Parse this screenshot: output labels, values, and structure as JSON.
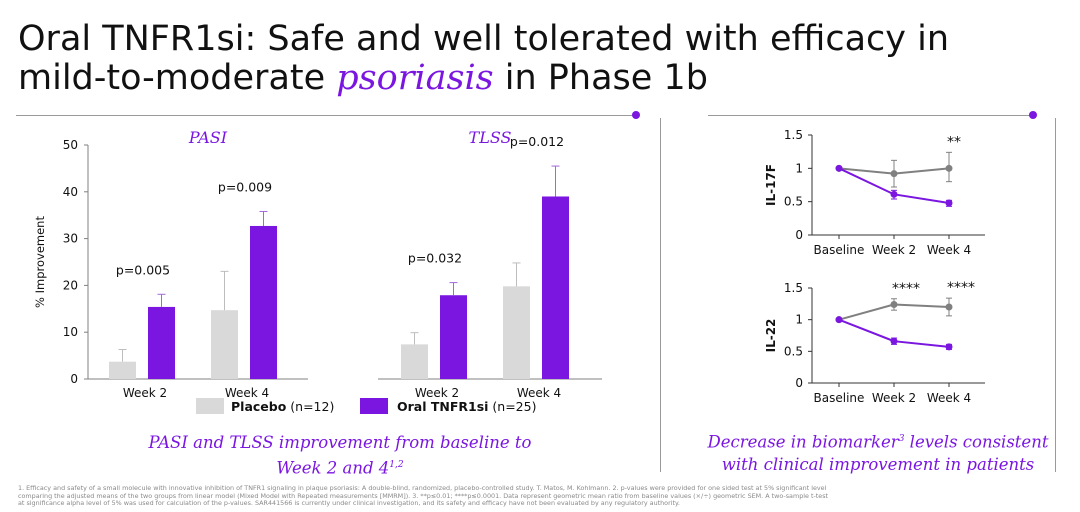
{
  "slide": {
    "title_line1": "Oral TNFR1si: Safe and well tolerated with efficacy in",
    "title_line2_pre": "mild-to-moderate ",
    "title_line2_accent": "psoriasis",
    "title_line2_post": " in Phase 1b",
    "accent_color": "#7a16e0",
    "caption_left_line1": "PASI and TLSS improvement from baseline to",
    "caption_left_line2": "Week 2 and 4",
    "caption_left_sup": "1,2",
    "caption_right_line1": "Decrease in biomarker",
    "caption_right_sup": "3",
    "caption_right_line1_post": " levels consistent",
    "caption_right_line2": "with clinical improvement in patients",
    "footnote_lines": [
      "1. Efficacy and safety of a small molecule with innovative inhibition of TNFR1 signaling in plaque psoriasis: A double-blind, randomized, placebo-controlled study. T. Matos, M. Kohlmann.     2. p-values were provided for one sided test at 5% significant level",
      "comparing the adjusted means of the two groups from linear model (Mixed Model with Repeated measurements [MMRM]).     3. **p≤0.01; ****p≤0.0001. Data represent geometric mean ratio from baseline values (×/÷) geometric SEM. A two-sample t-test",
      "at significance alpha level of 5% was used for calculation of the p-values.     SAR441566 is currently under clinical investigation, and its safety and efficacy have not been evaluated by any regulatory authority."
    ]
  },
  "chart_data": [
    {
      "type": "bar",
      "title": "PASI",
      "ylabel": "% Improvement",
      "ylim": [
        0,
        50
      ],
      "yticks": [
        0,
        10,
        20,
        30,
        40,
        50
      ],
      "categories": [
        "Week 2",
        "Week 4"
      ],
      "series": [
        {
          "name": "Placebo",
          "color": "#d9d9d9",
          "values": [
            3.7,
            14.7
          ],
          "err_high": [
            6.3,
            23.0
          ]
        },
        {
          "name": "Oral TNFR1si",
          "color": "#7a16e0",
          "values": [
            15.4,
            32.7
          ],
          "err_high": [
            18.1,
            35.8
          ]
        }
      ],
      "annotations": [
        "p=0.005",
        "p=0.009"
      ]
    },
    {
      "type": "bar",
      "title": "TLSS",
      "ylim": [
        0,
        50
      ],
      "categories": [
        "Week 2",
        "Week 4"
      ],
      "series": [
        {
          "name": "Placebo",
          "color": "#d9d9d9",
          "values": [
            7.4,
            19.8
          ],
          "err_high": [
            9.9,
            24.8
          ]
        },
        {
          "name": "Oral TNFR1si",
          "color": "#7a16e0",
          "values": [
            17.9,
            39.0
          ],
          "err_high": [
            20.6,
            45.5
          ]
        }
      ],
      "annotations": [
        "p=0.032",
        "p=0.012"
      ]
    },
    {
      "type": "line",
      "ylabel": "IL-17F",
      "ylim": [
        0,
        1.5
      ],
      "yticks": [
        "0",
        "0.5",
        "1",
        "1.5"
      ],
      "categories": [
        "Baseline",
        "Week 2",
        "Week 4"
      ],
      "series": [
        {
          "name": "Placebo",
          "color": "#808080",
          "values": [
            1.0,
            0.92,
            1.0
          ],
          "err_low": [
            1.0,
            0.72,
            0.8
          ],
          "err_high": [
            1.0,
            1.12,
            1.24
          ]
        },
        {
          "name": "Oral TNFR1si",
          "color": "#7a16e0",
          "values": [
            1.0,
            0.61,
            0.48
          ],
          "err_low": [
            1.0,
            0.54,
            0.43
          ],
          "err_high": [
            1.0,
            0.67,
            0.52
          ]
        }
      ],
      "annotations": [
        "",
        "",
        "**"
      ]
    },
    {
      "type": "line",
      "ylabel": "IL-22",
      "ylim": [
        0,
        1.5
      ],
      "yticks": [
        "0",
        "0.5",
        "1",
        "1.5"
      ],
      "categories": [
        "Baseline",
        "Week 2",
        "Week 4"
      ],
      "series": [
        {
          "name": "Placebo",
          "color": "#808080",
          "values": [
            1.0,
            1.24,
            1.2
          ],
          "err_low": [
            1.0,
            1.15,
            1.06
          ],
          "err_high": [
            1.0,
            1.33,
            1.34
          ]
        },
        {
          "name": "Oral TNFR1si",
          "color": "#7a16e0",
          "values": [
            1.0,
            0.66,
            0.57
          ],
          "err_low": [
            1.0,
            0.61,
            0.53
          ],
          "err_high": [
            1.0,
            0.71,
            0.61
          ]
        }
      ],
      "annotations": [
        "",
        "****",
        "****"
      ]
    }
  ],
  "legend": {
    "placebo_label": "Placebo",
    "placebo_n": "(n=12)",
    "drug_label": "Oral TNFR1si",
    "drug_n": "(n=25)",
    "placebo_color": "#d9d9d9",
    "drug_color": "#7a16e0"
  }
}
